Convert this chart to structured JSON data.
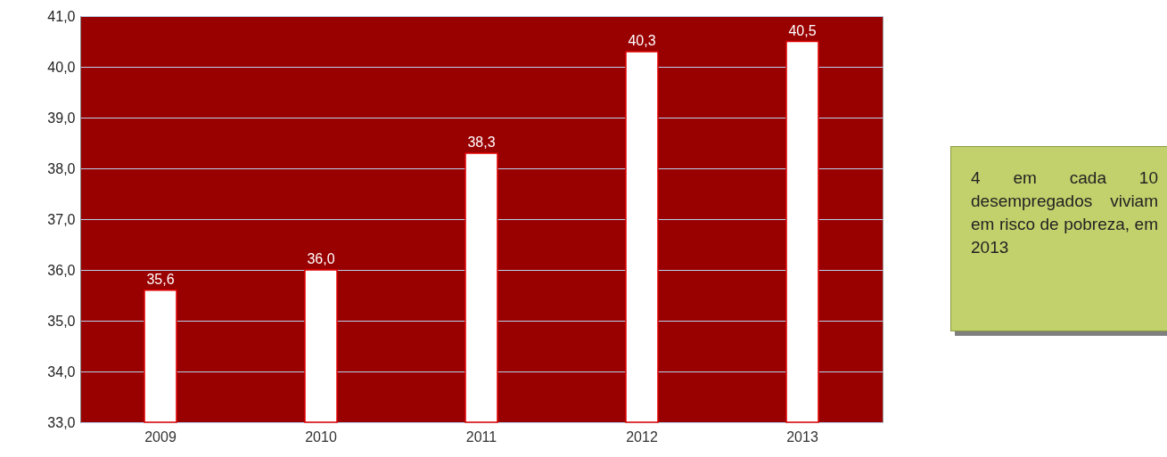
{
  "chart_data": {
    "type": "bar",
    "categories": [
      "2009",
      "2010",
      "2011",
      "2012",
      "2013"
    ],
    "values": [
      35.6,
      36.0,
      38.3,
      40.3,
      40.5
    ],
    "value_labels": [
      "35,6",
      "36,0",
      "38,3",
      "40,3",
      "40,5"
    ],
    "color": "#ffffff",
    "ylim": [
      33,
      41
    ],
    "yticks": [
      {
        "value": 33,
        "label": "33,0"
      },
      {
        "value": 34,
        "label": "34,0"
      },
      {
        "value": 35,
        "label": "35,0"
      },
      {
        "value": 36,
        "label": "36,0"
      },
      {
        "value": 37,
        "label": "37,0"
      },
      {
        "value": 38,
        "label": "38,0"
      },
      {
        "value": 39,
        "label": "39,0"
      },
      {
        "value": 40,
        "label": "40,0"
      },
      {
        "value": 41,
        "label": "41,0"
      }
    ],
    "grid": "y",
    "annotations": [
      "4 em cada 10 desempregados viviam em risco de pobreza, em 2013"
    ]
  }
}
